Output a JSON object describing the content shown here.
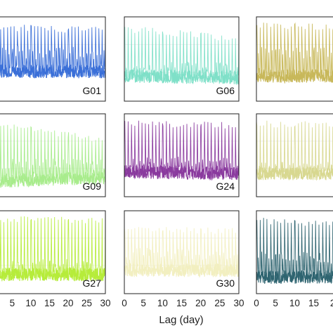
{
  "chart_data": [
    {
      "type": "line",
      "label": "G01",
      "color": "#3a6fd8",
      "series": [
        {
          "values": []
        }
      ],
      "xlim": [
        0,
        30
      ],
      "envelope": {
        "base": 0.28,
        "mid": 0.55,
        "top": 0.92,
        "top_end": 0.88,
        "base_end": 0.27,
        "trend": 0.0
      }
    },
    {
      "type": "line",
      "label": "G06",
      "color": "#7fe0c8",
      "series": [
        {
          "values": []
        }
      ],
      "xlim": [
        0,
        30
      ],
      "envelope": {
        "base": 0.22,
        "mid": 0.35,
        "top": 0.9,
        "top_end": 0.78,
        "base_end": 0.2,
        "trend": -0.05
      }
    },
    {
      "type": "line",
      "label": "",
      "color": "#c8b85a",
      "series": [
        {
          "values": []
        }
      ],
      "xlim": [
        0,
        30
      ],
      "envelope": {
        "base": 0.22,
        "mid": 0.55,
        "top": 0.94,
        "top_end": 0.9,
        "base_end": 0.22,
        "trend": 0.0
      }
    },
    {
      "type": "line",
      "label": "G09",
      "color": "#a8ec8c",
      "series": [
        {
          "values": []
        }
      ],
      "xlim": [
        0,
        30
      ],
      "envelope": {
        "base": 0.1,
        "mid": 0.35,
        "top": 0.95,
        "top_end": 0.72,
        "base_end": 0.15,
        "trend": -0.1
      }
    },
    {
      "type": "line",
      "label": "G24",
      "color": "#8a3a9e",
      "series": [
        {
          "values": []
        }
      ],
      "xlim": [
        0,
        30
      ],
      "envelope": {
        "base": 0.22,
        "mid": 0.38,
        "top": 0.92,
        "top_end": 0.9,
        "base_end": 0.2,
        "trend": 0.0
      }
    },
    {
      "type": "line",
      "label": "",
      "color": "#d8d890",
      "series": [
        {
          "values": []
        }
      ],
      "xlim": [
        0,
        30
      ],
      "envelope": {
        "base": 0.2,
        "mid": 0.3,
        "top": 0.92,
        "top_end": 0.9,
        "base_end": 0.2,
        "trend": 0.0
      }
    },
    {
      "type": "line",
      "label": "G27",
      "color": "#b6ec3a",
      "series": [
        {
          "values": []
        }
      ],
      "xlim": [
        0,
        30
      ],
      "envelope": {
        "base": 0.15,
        "mid": 0.3,
        "top": 0.94,
        "top_end": 0.92,
        "base_end": 0.15,
        "trend": 0.0
      }
    },
    {
      "type": "line",
      "label": "G30",
      "color": "#f2efc0",
      "series": [
        {
          "values": []
        }
      ],
      "xlim": [
        0,
        30
      ],
      "envelope": {
        "base": 0.2,
        "mid": 0.45,
        "top": 0.82,
        "top_end": 0.8,
        "base_end": 0.2,
        "trend": 0.0
      }
    },
    {
      "type": "line",
      "label": "",
      "color": "#2e6470",
      "series": [
        {
          "values": []
        }
      ],
      "xlim": [
        0,
        30
      ],
      "envelope": {
        "base": 0.12,
        "mid": 0.4,
        "top": 0.92,
        "top_end": 0.85,
        "base_end": 0.12,
        "trend": 0.0
      }
    }
  ],
  "axes": {
    "xlabel": "Lag (day)",
    "x_tick_labels_left": [
      "5",
      "10",
      "15",
      "20",
      "25",
      "30"
    ],
    "x_tick_labels_center": [
      "0",
      "5",
      "10",
      "15",
      "20",
      "25",
      "30"
    ],
    "x_tick_labels_right": [
      "0",
      "5",
      "10",
      "15",
      "2"
    ]
  }
}
